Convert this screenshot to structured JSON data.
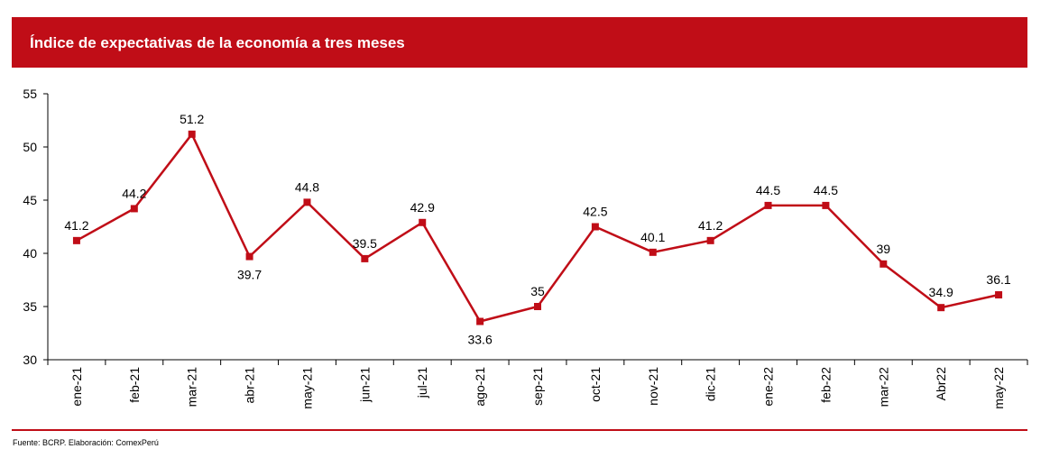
{
  "chart_data": {
    "type": "line",
    "title": "Índice de expectativas de la economía a tres meses",
    "categories": [
      "ene-21",
      "feb-21",
      "mar-21",
      "abr-21",
      "may-21",
      "jun-21",
      "jul-21",
      "ago-21",
      "sep-21",
      "oct-21",
      "nov-21",
      "dic-21",
      "ene-22",
      "feb-22",
      "mar-22",
      "Abr22",
      "may-22"
    ],
    "series": [
      {
        "values": [
          41.2,
          44.2,
          51.2,
          39.7,
          44.8,
          39.5,
          42.9,
          33.6,
          35,
          42.5,
          40.1,
          41.2,
          44.5,
          44.5,
          39,
          34.9,
          36.1
        ],
        "labels": [
          "41.2",
          "44.2",
          "51.2",
          "39.7",
          "44.8",
          "39.5",
          "42.9",
          "33.6",
          "35",
          "42.5",
          "40.1",
          "41.2",
          "44.5",
          "44.5",
          "39",
          "34.9",
          "36.1"
        ],
        "label_positions": [
          "above",
          "above",
          "above",
          "below",
          "above",
          "above",
          "above",
          "below",
          "above",
          "above",
          "above",
          "above",
          "above",
          "above",
          "above",
          "above",
          "above"
        ],
        "color": "#C00D17"
      }
    ],
    "y_ticks": [
      "30",
      "35",
      "40",
      "45",
      "50",
      "55"
    ],
    "ylim": [
      30,
      55
    ],
    "xlabel": "",
    "ylabel": "",
    "grid": false,
    "legend": "none"
  },
  "footer": {
    "source": "Fuente: BCRP. Elaboración: ComexPerú"
  },
  "colors": {
    "accent": "#C00D17",
    "axis": "#000000",
    "background": "#ffffff"
  }
}
